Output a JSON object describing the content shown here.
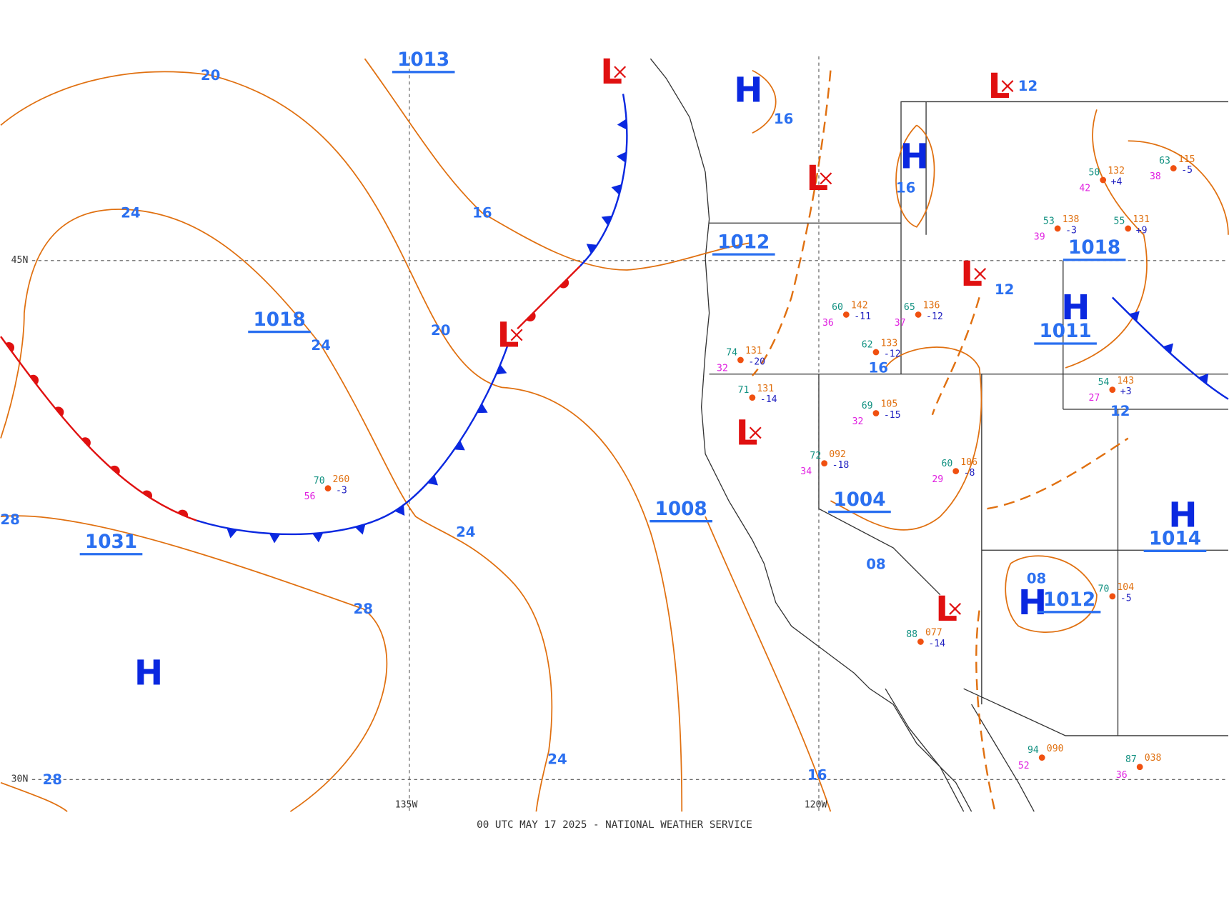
{
  "footer": "00 UTC MAY 17 2025 - NATIONAL WEATHER SERVICE",
  "grid_labels": [
    "45N",
    "30N",
    "135W",
    "120W"
  ],
  "centers": [
    {
      "label": "H"
    },
    {
      "label": "H"
    },
    {
      "label": "H"
    },
    {
      "label": "H"
    },
    {
      "label": "H"
    },
    {
      "label": "H"
    },
    {
      "label": "L"
    },
    {
      "label": "L"
    },
    {
      "label": "L"
    },
    {
      "label": "L"
    },
    {
      "label": "L"
    },
    {
      "label": "L"
    },
    {
      "label": "L"
    }
  ],
  "pressures": [
    "1013",
    "1018",
    "1031",
    "1012",
    "1008",
    "1004",
    "1018",
    "1011",
    "1014",
    "1012"
  ],
  "isobar_labels": [
    "20",
    "24",
    "16",
    "24",
    "20",
    "28",
    "28",
    "24",
    "24",
    "28",
    "16",
    "16",
    "12",
    "12",
    "16",
    "12",
    "08",
    "08",
    "16"
  ],
  "stations": [
    {
      "temp": "70",
      "pressure": "260",
      "dewpoint": "56",
      "tendency": "-3"
    },
    {
      "temp": "74",
      "pressure": "131",
      "dewpoint": "32",
      "tendency": "-20"
    },
    {
      "temp": "71",
      "pressure": "131",
      "dewpoint": "",
      "tendency": "-14"
    },
    {
      "temp": "69",
      "pressure": "105",
      "dewpoint": "32",
      "tendency": "-15"
    },
    {
      "temp": "72",
      "pressure": "092",
      "dewpoint": "34",
      "tendency": "-18"
    },
    {
      "temp": "60",
      "pressure": "106",
      "dewpoint": "29",
      "tendency": "-8"
    },
    {
      "temp": "62",
      "pressure": "133",
      "dewpoint": "",
      "tendency": "-12"
    },
    {
      "temp": "65",
      "pressure": "136",
      "dewpoint": "37",
      "tendency": "-12"
    },
    {
      "temp": "60",
      "pressure": "142",
      "dewpoint": "36",
      "tendency": "-11"
    },
    {
      "temp": "55",
      "pressure": "131",
      "dewpoint": "",
      "tendency": "+9"
    },
    {
      "temp": "53",
      "pressure": "138",
      "dewpoint": "39",
      "tendency": "-3"
    },
    {
      "temp": "54",
      "pressure": "143",
      "dewpoint": "27",
      "tendency": "+3"
    },
    {
      "temp": "70",
      "pressure": "104",
      "dewpoint": "",
      "tendency": "-5"
    },
    {
      "temp": "88",
      "pressure": "077",
      "dewpoint": "",
      "tendency": "-14"
    },
    {
      "temp": "94",
      "pressure": "090",
      "dewpoint": "52",
      "tendency": ""
    },
    {
      "temp": "87",
      "pressure": "038",
      "dewpoint": "36",
      "tendency": ""
    },
    {
      "temp": "50",
      "pressure": "132",
      "dewpoint": "42",
      "tendency": "+4"
    },
    {
      "temp": "63",
      "pressure": "115",
      "dewpoint": "38",
      "tendency": "-5"
    }
  ]
}
